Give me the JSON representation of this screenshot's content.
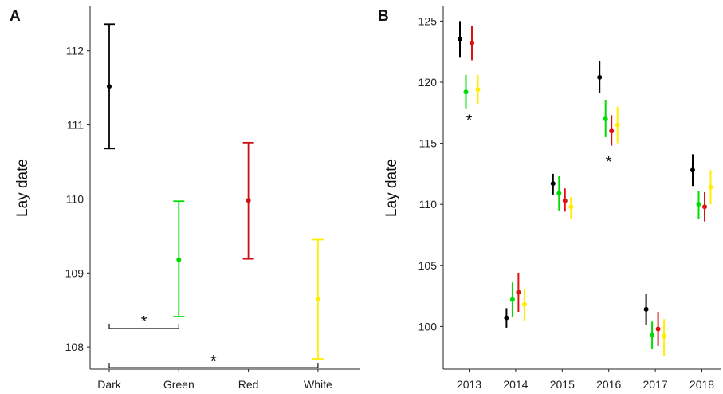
{
  "chart_data": [
    {
      "panel_label": "A",
      "type": "scatter",
      "subtype": "point-with-error-bars",
      "xlabel": "",
      "ylabel": "Lay date",
      "ylim": [
        107.7,
        112.6
      ],
      "yticks": [
        108,
        109,
        110,
        111,
        112
      ],
      "categories": [
        "Dark",
        "Green",
        "Red",
        "White"
      ],
      "points": [
        {
          "category": "Dark",
          "y": 111.52,
          "low": 110.68,
          "high": 112.36,
          "color": "#000000"
        },
        {
          "category": "Green",
          "y": 109.18,
          "low": 108.41,
          "high": 109.97,
          "color": "#00dd00"
        },
        {
          "category": "Red",
          "y": 109.98,
          "low": 109.19,
          "high": 110.76,
          "color": "#cc1111"
        },
        {
          "category": "White",
          "y": 108.65,
          "low": 107.84,
          "high": 109.45,
          "color": "#ffee00"
        }
      ],
      "annotations": [
        {
          "text": "*",
          "from": "Dark",
          "to": "Green",
          "y": 108.25
        },
        {
          "text": "*",
          "from": "Dark",
          "to": "White",
          "y": 107.72
        }
      ],
      "grid": false,
      "legend": "none"
    },
    {
      "panel_label": "B",
      "type": "scatter",
      "subtype": "point-with-error-bars-dodged",
      "xlabel": "",
      "ylabel": "Lay date",
      "ylim": [
        96.5,
        126.2
      ],
      "yticks": [
        100,
        105,
        110,
        115,
        120,
        125
      ],
      "categories": [
        "2013",
        "2014",
        "2015",
        "2016",
        "2017",
        "2018"
      ],
      "groups": [
        "Dark",
        "Green",
        "Red",
        "White"
      ],
      "colors": {
        "Dark": "#000000",
        "Green": "#00dd00",
        "Red": "#dd1111",
        "White": "#ffee00"
      },
      "series": [
        {
          "group": "Dark",
          "values": [
            123.5,
            100.7,
            111.7,
            120.4,
            101.4,
            112.8
          ],
          "low": [
            122.0,
            99.9,
            110.8,
            119.1,
            100.1,
            111.5
          ],
          "high": [
            125.0,
            101.5,
            112.5,
            121.7,
            102.7,
            114.1
          ]
        },
        {
          "group": "Green",
          "values": [
            119.2,
            102.2,
            110.9,
            117.0,
            99.3,
            110.0
          ],
          "low": [
            117.8,
            100.8,
            109.5,
            115.5,
            98.2,
            108.8
          ],
          "high": [
            120.6,
            103.6,
            112.3,
            118.5,
            100.4,
            111.1
          ]
        },
        {
          "group": "Red",
          "values": [
            123.2,
            102.8,
            110.3,
            116.0,
            99.8,
            109.8
          ],
          "low": [
            121.8,
            101.2,
            109.4,
            114.8,
            98.4,
            108.6
          ],
          "high": [
            124.6,
            104.4,
            111.3,
            117.3,
            101.2,
            111.0
          ]
        },
        {
          "group": "White",
          "values": [
            119.4,
            101.8,
            109.8,
            116.5,
            99.2,
            111.4
          ],
          "low": [
            118.2,
            100.4,
            108.8,
            115.0,
            97.6,
            110.0
          ],
          "high": [
            120.6,
            103.1,
            110.6,
            118.0,
            100.6,
            112.8
          ]
        }
      ],
      "annotations": [
        {
          "text": "*",
          "category": "2013",
          "y": 117.1
        },
        {
          "text": "*",
          "category": "2016",
          "y": 113.7
        }
      ],
      "grid": false,
      "legend": "none"
    }
  ]
}
